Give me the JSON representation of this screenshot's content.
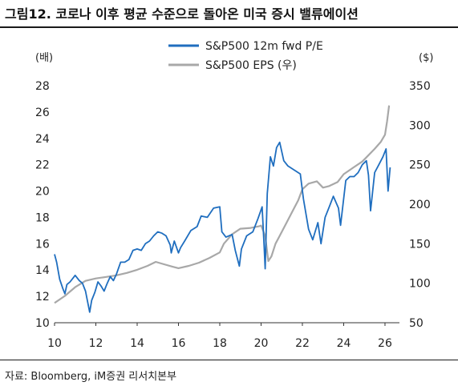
{
  "header": {
    "title": "그림12. 코로나 이후 평균 수준으로 돌아온 미국 증시 밸류에이션"
  },
  "footer": {
    "source": "자료: Bloomberg, iM증권 리서치본부"
  },
  "chart_data": {
    "type": "line",
    "title": "그림12. 코로나 이후 평균 수준으로 돌아온 미국 증시 밸류에이션",
    "xlabel": "",
    "x_ticks": [
      "10",
      "12",
      "14",
      "16",
      "18",
      "20",
      "22",
      "24",
      "26"
    ],
    "xlim": [
      2010,
      2026.7
    ],
    "left_axis": {
      "unit": "(배)",
      "ylim": [
        10,
        28
      ],
      "ticks": [
        10,
        12,
        14,
        16,
        18,
        20,
        22,
        24,
        26,
        28
      ]
    },
    "right_axis": {
      "unit": "($)",
      "ylim": [
        50,
        350
      ],
      "ticks": [
        50,
        100,
        150,
        200,
        250,
        300,
        350
      ]
    },
    "legend_position": "top-center",
    "grid": false,
    "series": [
      {
        "name": "S&P500 12m fwd P/E",
        "axis": "left",
        "color": "#1f6ebf",
        "x": [
          2010.0,
          2010.1,
          2010.25,
          2010.4,
          2010.5,
          2010.6,
          2010.75,
          2010.9,
          2011.0,
          2011.2,
          2011.35,
          2011.5,
          2011.6,
          2011.7,
          2011.8,
          2011.95,
          2012.1,
          2012.25,
          2012.4,
          2012.55,
          2012.7,
          2012.85,
          2013.0,
          2013.2,
          2013.4,
          2013.6,
          2013.8,
          2014.0,
          2014.2,
          2014.4,
          2014.6,
          2014.8,
          2015.0,
          2015.2,
          2015.4,
          2015.6,
          2015.65,
          2015.8,
          2016.0,
          2016.1,
          2016.3,
          2016.6,
          2016.9,
          2017.1,
          2017.4,
          2017.7,
          2018.0,
          2018.1,
          2018.3,
          2018.6,
          2018.75,
          2018.95,
          2019.05,
          2019.3,
          2019.6,
          2019.85,
          2020.05,
          2020.15,
          2020.2,
          2020.3,
          2020.45,
          2020.6,
          2020.75,
          2020.9,
          2021.1,
          2021.3,
          2021.6,
          2021.9,
          2022.05,
          2022.3,
          2022.5,
          2022.75,
          2022.9,
          2023.1,
          2023.3,
          2023.5,
          2023.75,
          2023.85,
          2024.1,
          2024.3,
          2024.5,
          2024.7,
          2024.9,
          2025.1,
          2025.2,
          2025.3,
          2025.5,
          2025.7,
          2025.9,
          2026.05,
          2026.15,
          2026.25
        ],
        "values": [
          15.2,
          14.6,
          13.3,
          12.6,
          12.2,
          12.9,
          13.1,
          13.4,
          13.6,
          13.2,
          13.0,
          12.4,
          11.6,
          10.8,
          11.7,
          12.3,
          13.1,
          12.8,
          12.4,
          13.0,
          13.5,
          13.2,
          13.7,
          14.6,
          14.6,
          14.8,
          15.5,
          15.6,
          15.5,
          16.0,
          16.2,
          16.6,
          16.9,
          16.8,
          16.6,
          15.9,
          15.3,
          16.2,
          15.3,
          15.7,
          16.2,
          17.0,
          17.3,
          18.1,
          18.0,
          18.7,
          18.8,
          16.9,
          16.5,
          16.7,
          15.5,
          14.3,
          15.6,
          16.6,
          16.9,
          17.9,
          18.8,
          15.8,
          14.1,
          19.8,
          22.6,
          21.9,
          23.3,
          23.7,
          22.3,
          21.9,
          21.6,
          21.3,
          19.4,
          17.1,
          16.3,
          17.6,
          16.0,
          18.0,
          18.8,
          19.6,
          18.7,
          17.4,
          20.8,
          21.1,
          21.1,
          21.4,
          22.0,
          22.3,
          21.2,
          18.5,
          21.4,
          22.0,
          22.6,
          23.2,
          20.0,
          21.8
        ]
      },
      {
        "name": "S&P500 EPS (우)",
        "axis": "right",
        "color": "#a8a8a8",
        "x": [
          2010.0,
          2010.5,
          2011.0,
          2011.5,
          2012.0,
          2012.5,
          2013.0,
          2013.5,
          2014.0,
          2014.5,
          2014.9,
          2015.3,
          2015.7,
          2016.0,
          2016.5,
          2017.0,
          2017.5,
          2018.0,
          2018.2,
          2018.6,
          2019.0,
          2019.5,
          2019.9,
          2020.0,
          2020.2,
          2020.35,
          2020.5,
          2020.7,
          2020.9,
          2021.2,
          2021.5,
          2021.8,
          2022.0,
          2022.3,
          2022.7,
          2023.0,
          2023.3,
          2023.7,
          2024.0,
          2024.5,
          2024.9,
          2025.2,
          2025.5,
          2025.8,
          2026.0,
          2026.1,
          2026.2
        ],
        "values": [
          75,
          84,
          95,
          103,
          106,
          108,
          110,
          113,
          117,
          122,
          127,
          124,
          121,
          119,
          122,
          126,
          132,
          139,
          150,
          162,
          169,
          170,
          172,
          173,
          160,
          128,
          134,
          150,
          160,
          175,
          190,
          205,
          219,
          226,
          229,
          221,
          223,
          228,
          238,
          247,
          254,
          262,
          270,
          279,
          288,
          305,
          325
        ]
      }
    ]
  }
}
